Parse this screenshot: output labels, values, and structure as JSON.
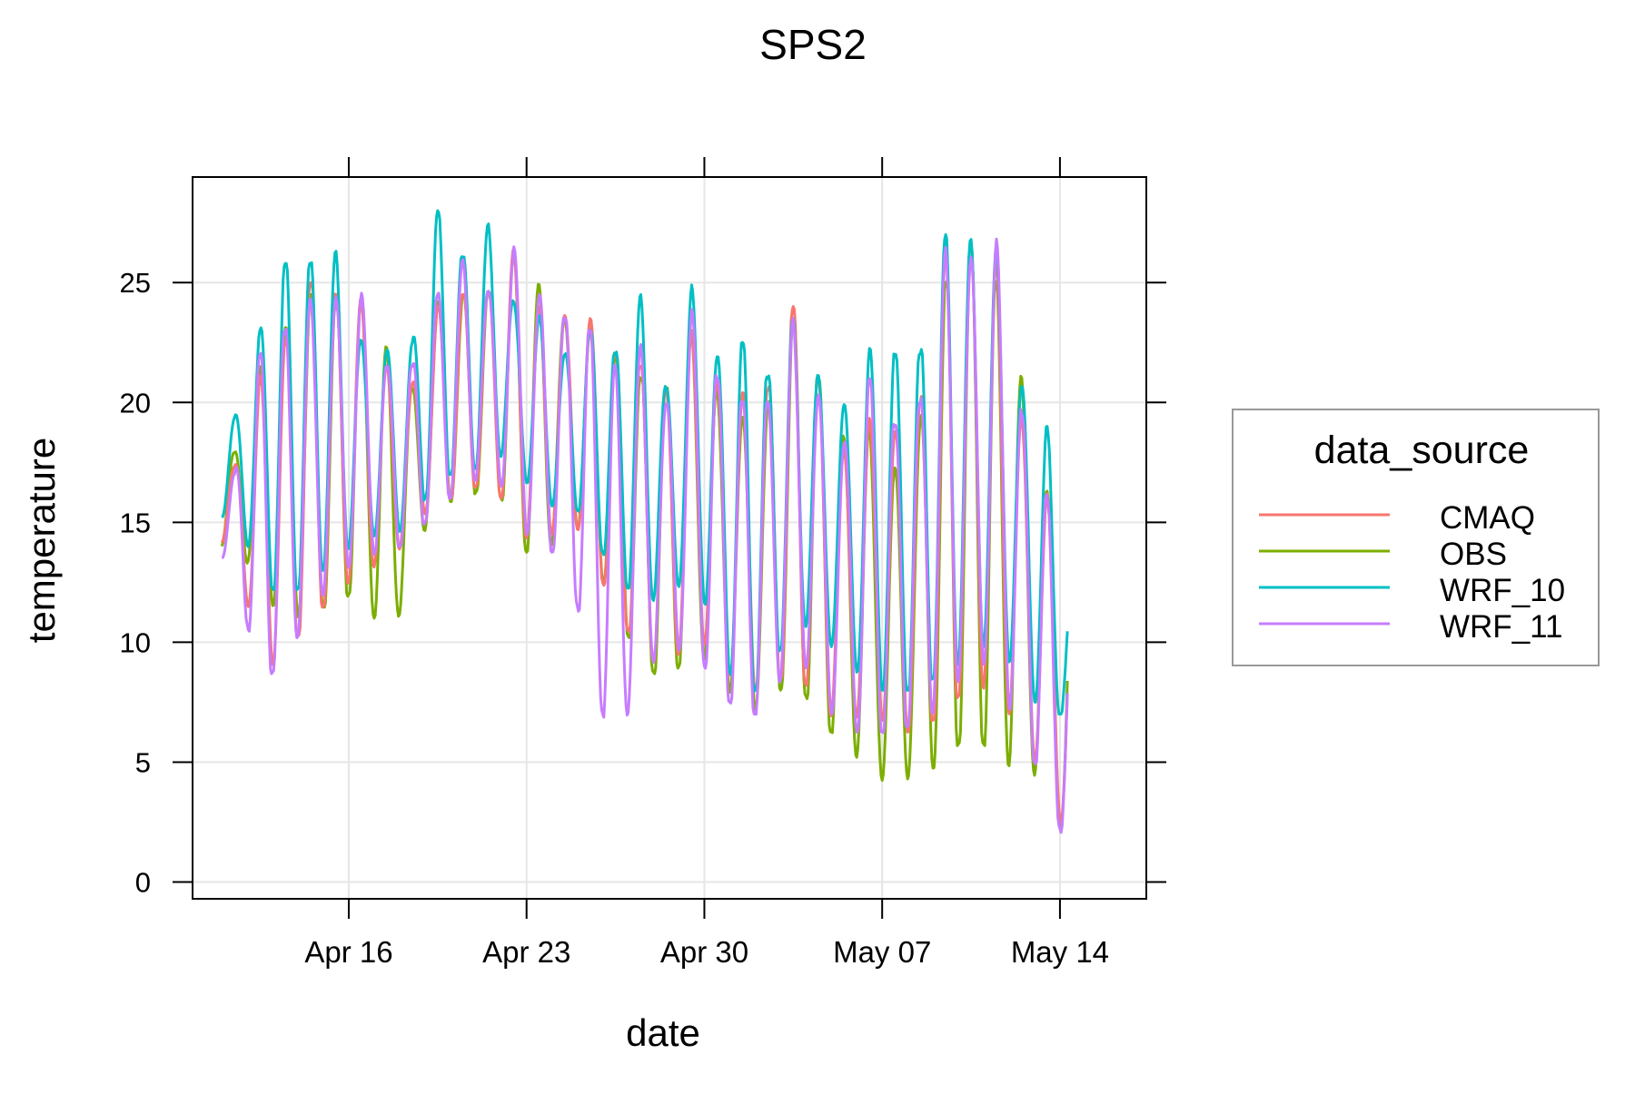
{
  "chart_data": {
    "type": "line",
    "title": "SPS2",
    "xlabel": "date",
    "ylabel": "temperature",
    "x_ticks": [
      {
        "label": "Apr 16",
        "day": 5
      },
      {
        "label": "Apr 23",
        "day": 12
      },
      {
        "label": "Apr 30",
        "day": 19
      },
      {
        "label": "May 07",
        "day": 26
      },
      {
        "label": "May 14",
        "day": 33
      }
    ],
    "x_range_days": [
      -1.15,
      36.4
    ],
    "y_ticks": [
      0,
      5,
      10,
      15,
      20,
      25
    ],
    "ylim": [
      -0.7,
      29.4
    ],
    "grid": true,
    "legend": {
      "title": "data_source",
      "position": "right",
      "entries": [
        {
          "name": "CMAQ",
          "color": "#F8766D"
        },
        {
          "name": "OBS",
          "color": "#7CAE00"
        },
        {
          "name": "WRF_10",
          "color": "#00BFC4"
        },
        {
          "name": "WRF_11",
          "color": "#C77CFF"
        }
      ]
    },
    "daily_range_note": "x in days since Apr 11; each day: [min, max] temperature envelope per series",
    "series": [
      {
        "name": "OBS",
        "color": "#7CAE00",
        "days": [
          0.5,
          1.5,
          2.5,
          3.5,
          4.5,
          5.5,
          6.5,
          7.5,
          8.5,
          9.5,
          10.5,
          11.5,
          12.5,
          13.5,
          14.5,
          15.5,
          16.5,
          17.5,
          18.5,
          19.5,
          20.5,
          21.5,
          22.5,
          23.5,
          24.5,
          25.5,
          26.5,
          27.5,
          28.5,
          29.5,
          30.5,
          31.5,
          32.5,
          33.2
        ],
        "min": [
          14,
          12,
          10,
          12,
          11,
          13,
          9,
          12.5,
          16,
          15.5,
          17,
          15,
          12.5,
          15,
          13.5,
          11,
          9.5,
          8,
          10,
          8,
          6.5,
          7,
          9,
          6.5,
          6,
          4,
          3,
          4.5,
          5,
          6.5,
          5,
          4.5,
          3,
          1.2
        ],
        "max": [
          18,
          22,
          23.5,
          24.5,
          24,
          24,
          22.5,
          21,
          24.5,
          24.5,
          24.5,
          26,
          25,
          24,
          23.5,
          22,
          21,
          20.5,
          23,
          21,
          20,
          20,
          23.5,
          21,
          18.5,
          19.5,
          18,
          19.5,
          25,
          26,
          25,
          21.5,
          17,
          13.5
        ]
      },
      {
        "name": "CMAQ",
        "color": "#F8766D",
        "days": [
          0.5,
          1.5,
          2.5,
          3.5,
          4.5,
          5.5,
          6.5,
          7.5,
          8.5,
          9.5,
          10.5,
          11.5,
          12.5,
          13.5,
          14.5,
          15.5,
          16.5,
          17.5,
          18.5,
          19.5,
          20.5,
          21.5,
          22.5,
          23.5,
          24.5,
          25.5,
          26.5,
          27.5,
          28.5,
          29.5,
          30.5,
          31.5,
          32.5,
          33.2
        ],
        "min": [
          14,
          8.5,
          9.5,
          11,
          12,
          13,
          12.5,
          14.5,
          16,
          16,
          17,
          15,
          13,
          15,
          14,
          11,
          10,
          8.5,
          10,
          8.5,
          8,
          8,
          9,
          7.5,
          6,
          6.5,
          6,
          6.5,
          7,
          8.5,
          7.5,
          5,
          4,
          2
        ],
        "max": [
          17.5,
          21.5,
          22.5,
          25,
          24.5,
          24.5,
          22,
          21,
          24,
          24.5,
          24.5,
          26.5,
          24.5,
          24,
          23.5,
          22,
          21.5,
          20.5,
          23.5,
          21.5,
          20.5,
          20.5,
          24,
          21,
          18.5,
          20,
          19,
          20,
          26,
          26.5,
          26.5,
          20,
          16.5,
          12
        ]
      },
      {
        "name": "WRF_10",
        "color": "#00BFC4",
        "days": [
          0.5,
          1.5,
          2.5,
          3.5,
          4.5,
          5.5,
          6.5,
          7.5,
          8.5,
          9.5,
          10.5,
          11.5,
          12.5,
          13.5,
          14.5,
          15.5,
          16.5,
          17.5,
          18.5,
          19.5,
          20.5,
          21.5,
          22.5,
          23.5,
          24.5,
          25.5,
          26.5,
          27.5,
          28.5,
          29.5,
          30.5,
          31.5,
          32.5,
          33.2
        ],
        "min": [
          15,
          13,
          11.5,
          13,
          13,
          14,
          14,
          15,
          17,
          17,
          17.5,
          17.5,
          15,
          16,
          15,
          12.5,
          12,
          11,
          12.5,
          10,
          7.5,
          8.5,
          11,
          10,
          8.5,
          8,
          8,
          8,
          9,
          9,
          9,
          8,
          7,
          7
        ],
        "max": [
          19.5,
          23,
          25.8,
          25.8,
          26.5,
          23,
          22.5,
          22.5,
          28,
          26,
          27.5,
          24.5,
          24,
          22,
          23,
          22,
          24.5,
          21,
          25.5,
          22,
          22.5,
          21,
          23.5,
          21.5,
          20.5,
          22.5,
          22,
          22,
          27,
          27.3,
          27.5,
          21,
          19,
          12.5
        ]
      },
      {
        "name": "WRF_11",
        "color": "#C77CFF",
        "days": [
          0.5,
          1.5,
          2.5,
          3.5,
          4.5,
          5.5,
          6.5,
          7.5,
          8.5,
          9.5,
          10.5,
          11.5,
          12.5,
          13.5,
          14.5,
          15.5,
          16.5,
          17.5,
          18.5,
          19.5,
          20.5,
          21.5,
          22.5,
          23.5,
          24.5,
          25.5,
          26.5,
          27.5,
          28.5,
          29.5,
          30.5,
          31.5,
          32.5,
          33.2
        ],
        "min": [
          13.5,
          8,
          9.5,
          11,
          12,
          13,
          14,
          14,
          16,
          16,
          17,
          15,
          13.5,
          14,
          9,
          5,
          8.5,
          8.5,
          10,
          8,
          7,
          7,
          9.5,
          7,
          6,
          6.5,
          6,
          7,
          7,
          8,
          8.5,
          6,
          4,
          1.5
        ],
        "max": [
          17,
          22,
          23,
          24.5,
          25,
          25,
          21.5,
          21.5,
          24.5,
          26,
          25,
          27,
          24.5,
          23.5,
          23,
          21.5,
          23,
          20.5,
          24,
          21,
          20,
          20,
          24,
          21,
          18.5,
          21,
          19,
          20,
          27,
          27,
          27.3,
          19.5,
          16,
          11
        ]
      }
    ]
  }
}
